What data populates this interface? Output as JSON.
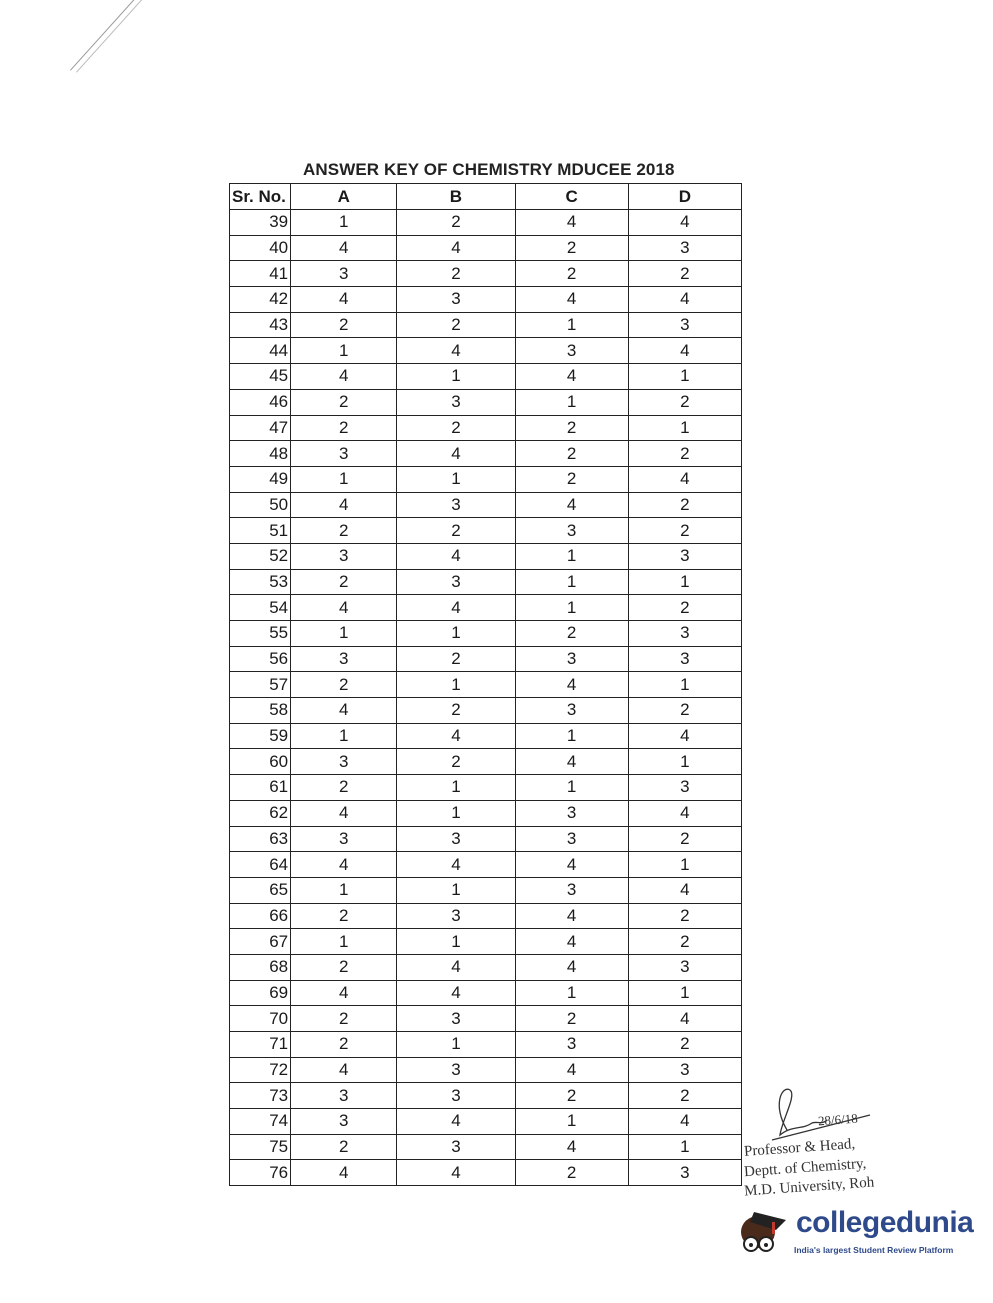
{
  "document": {
    "title": "ANSWER KEY OF CHEMISTRY MDUCEE 2018",
    "columns": [
      "Sr. No.",
      "A",
      "B",
      "C",
      "D"
    ],
    "rows": [
      [
        "39",
        "1",
        "2",
        "4",
        "4"
      ],
      [
        "40",
        "4",
        "4",
        "2",
        "3"
      ],
      [
        "41",
        "3",
        "2",
        "2",
        "2"
      ],
      [
        "42",
        "4",
        "3",
        "4",
        "4"
      ],
      [
        "43",
        "2",
        "2",
        "1",
        "3"
      ],
      [
        "44",
        "1",
        "4",
        "3",
        "4"
      ],
      [
        "45",
        "4",
        "1",
        "4",
        "1"
      ],
      [
        "46",
        "2",
        "3",
        "1",
        "2"
      ],
      [
        "47",
        "2",
        "2",
        "2",
        "1"
      ],
      [
        "48",
        "3",
        "4",
        "2",
        "2"
      ],
      [
        "49",
        "1",
        "1",
        "2",
        "4"
      ],
      [
        "50",
        "4",
        "3",
        "4",
        "2"
      ],
      [
        "51",
        "2",
        "2",
        "3",
        "2"
      ],
      [
        "52",
        "3",
        "4",
        "1",
        "3"
      ],
      [
        "53",
        "2",
        "3",
        "1",
        "1"
      ],
      [
        "54",
        "4",
        "4",
        "1",
        "2"
      ],
      [
        "55",
        "1",
        "1",
        "2",
        "3"
      ],
      [
        "56",
        "3",
        "2",
        "3",
        "3"
      ],
      [
        "57",
        "2",
        "1",
        "4",
        "1"
      ],
      [
        "58",
        "4",
        "2",
        "3",
        "2"
      ],
      [
        "59",
        "1",
        "4",
        "1",
        "4"
      ],
      [
        "60",
        "3",
        "2",
        "4",
        "1"
      ],
      [
        "61",
        "2",
        "1",
        "1",
        "3"
      ],
      [
        "62",
        "4",
        "1",
        "3",
        "4"
      ],
      [
        "63",
        "3",
        "3",
        "3",
        "2"
      ],
      [
        "64",
        "4",
        "4",
        "4",
        "1"
      ],
      [
        "65",
        "1",
        "1",
        "3",
        "4"
      ],
      [
        "66",
        "2",
        "3",
        "4",
        "2"
      ],
      [
        "67",
        "1",
        "1",
        "4",
        "2"
      ],
      [
        "68",
        "2",
        "4",
        "4",
        "3"
      ],
      [
        "69",
        "4",
        "4",
        "1",
        "1"
      ],
      [
        "70",
        "2",
        "3",
        "2",
        "4"
      ],
      [
        "71",
        "2",
        "1",
        "3",
        "2"
      ],
      [
        "72",
        "4",
        "3",
        "4",
        "3"
      ],
      [
        "73",
        "3",
        "3",
        "2",
        "2"
      ],
      [
        "74",
        "3",
        "4",
        "1",
        "4"
      ],
      [
        "75",
        "2",
        "3",
        "4",
        "1"
      ],
      [
        "76",
        "4",
        "4",
        "2",
        "3"
      ]
    ]
  },
  "signature": {
    "date": "28/6/18",
    "line1": "Professor & Head,",
    "line2": "Deptt. of Chemistry,",
    "line3": "M.D. University, Roh"
  },
  "watermark": {
    "brand": "collegedunia",
    "tagline": "India's largest Student Review Platform",
    "brand_color": "#2f4a8a"
  }
}
